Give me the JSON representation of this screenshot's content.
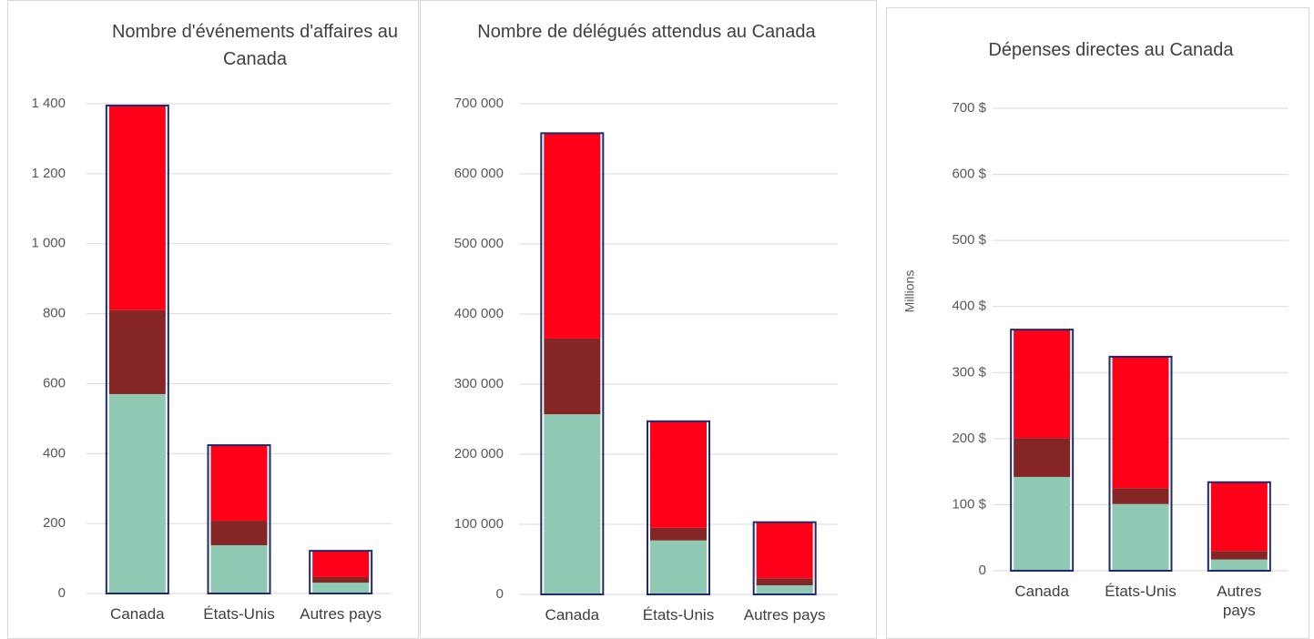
{
  "chart_data": [
    {
      "type": "bar",
      "stacked": true,
      "title": "Nombre d'événements d'affaires au Canada",
      "categories": [
        "Canada",
        "États-Unis",
        "Autres pays"
      ],
      "series": [
        {
          "color": "#8fc9b4",
          "values": [
            570,
            138,
            31
          ]
        },
        {
          "color": "#852626",
          "values": [
            240,
            70,
            16
          ]
        },
        {
          "color": "#ff0019",
          "values": [
            585,
            216,
            75
          ]
        }
      ],
      "outline_color": "#1f2a6b",
      "ylim": [
        0,
        1400
      ],
      "yticks": [
        0,
        200,
        400,
        600,
        800,
        {
          "value": 1000,
          "label": "1 000"
        },
        {
          "value": 1200,
          "label": "1 200"
        },
        {
          "value": 1400,
          "label": "1 400"
        }
      ],
      "grid": true
    },
    {
      "type": "bar",
      "stacked": true,
      "title": "Nombre de délégués attendus au Canada",
      "categories": [
        "Canada",
        "États-Unis",
        "Autres pays"
      ],
      "series": [
        {
          "color": "#8fc9b4",
          "values": [
            257000,
            77000,
            13000
          ]
        },
        {
          "color": "#852626",
          "values": [
            108000,
            18000,
            10000
          ]
        },
        {
          "color": "#ff0019",
          "values": [
            293000,
            152000,
            80000
          ]
        }
      ],
      "outline_color": "#1f2a6b",
      "ylim": [
        0,
        700000
      ],
      "yticks": [
        0,
        {
          "value": 100000,
          "label": "100 000"
        },
        {
          "value": 200000,
          "label": "200 000"
        },
        {
          "value": 300000,
          "label": "300 000"
        },
        {
          "value": 400000,
          "label": "400 000"
        },
        {
          "value": 500000,
          "label": "500 000"
        },
        {
          "value": 600000,
          "label": "600 000"
        },
        {
          "value": 700000,
          "label": "700 000"
        }
      ],
      "grid": true
    },
    {
      "type": "bar",
      "stacked": true,
      "title": "Dépenses directes au Canada",
      "y_label": "Millions",
      "categories": [
        "Canada",
        "États-Unis",
        "Autres pays"
      ],
      "series": [
        {
          "color": "#8fc9b4",
          "values": [
            142,
            101,
            17
          ]
        },
        {
          "color": "#852626",
          "values": [
            59,
            24,
            13
          ]
        },
        {
          "color": "#ff0019",
          "values": [
            164,
            199,
            104
          ]
        }
      ],
      "outline_color": "#1f2a6b",
      "ylim": [
        0,
        700
      ],
      "yticks": [
        0,
        {
          "value": 100,
          "label": "100 $"
        },
        {
          "value": 200,
          "label": "200 $"
        },
        {
          "value": 300,
          "label": "300 $"
        },
        {
          "value": 400,
          "label": "400 $"
        },
        {
          "value": 500,
          "label": "500 $"
        },
        {
          "value": 600,
          "label": "600 $"
        },
        {
          "value": 700,
          "label": "700 $"
        }
      ],
      "grid": true
    }
  ]
}
